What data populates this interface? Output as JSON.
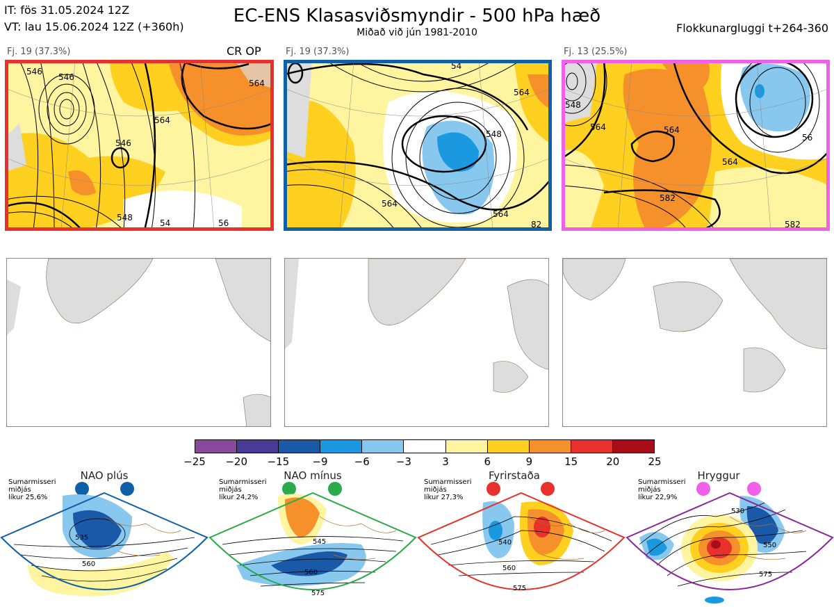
{
  "header": {
    "it": "IT: fös 31.05.2024 12Z",
    "vt": "VT: lau 15.06.2024 12Z  (+360h)",
    "title": "EC-ENS Klasasviðsmyndir - 500 hPa hæð",
    "subtitle": "Miðað við jún 1981-2010",
    "window": "Flokkunargluggi t+264-360"
  },
  "panels": [
    {
      "label": "Fj. 19 (37.3%)",
      "tag": "CR OP",
      "frame_color": "#e8302c",
      "contours": [
        "564",
        "546",
        "546",
        "564",
        "546",
        "54",
        "56",
        "548"
      ]
    },
    {
      "label": "Fj. 19 (37.3%)",
      "tag": "",
      "frame_color": "#1060a8",
      "contours": [
        "54",
        "564",
        "548",
        "564",
        "564",
        "82"
      ]
    },
    {
      "label": "Fj. 13 (25.5%)",
      "tag": "",
      "frame_color": "#f060e8",
      "contours": [
        "548",
        "564",
        "564",
        "564",
        "582",
        "582",
        "56"
      ]
    }
  ],
  "colorbar": {
    "colors": [
      "#8a4a9a",
      "#4a3a96",
      "#1a58a8",
      "#1a98e0",
      "#88c8ee",
      "#ffffff",
      "#fff4a0",
      "#ffd020",
      "#f5902a",
      "#e8302c",
      "#a80d18"
    ],
    "ticks": [
      "−25",
      "−20",
      "−15",
      "−9",
      "−6",
      "−3",
      "3",
      "6",
      "9",
      "15",
      "20",
      "25"
    ]
  },
  "regimes": [
    {
      "name": "NAO plús",
      "info": [
        "Sumarmisseri",
        "miðjás",
        "líkur 25,6%"
      ],
      "color": "#1060a8",
      "contours": [
        "535",
        "560"
      ]
    },
    {
      "name": "NAO mínus",
      "info": [
        "Sumarmisseri",
        "miðjás",
        "líkur 24,2%"
      ],
      "color": "#2aaa4a",
      "contours": [
        "545",
        "560",
        "575"
      ]
    },
    {
      "name": "Fyrirstaða",
      "info": [
        "Sumarmisseri",
        "miðjás",
        "líkur 27,3%"
      ],
      "color": "#e8302c",
      "contours": [
        "540",
        "560",
        "575"
      ]
    },
    {
      "name": "Hryggur",
      "info": [
        "Sumarmisseri",
        "miðjás",
        "líkur 22,9%"
      ],
      "color": "#f060e8",
      "contours": [
        "530",
        "550",
        "575"
      ]
    }
  ]
}
